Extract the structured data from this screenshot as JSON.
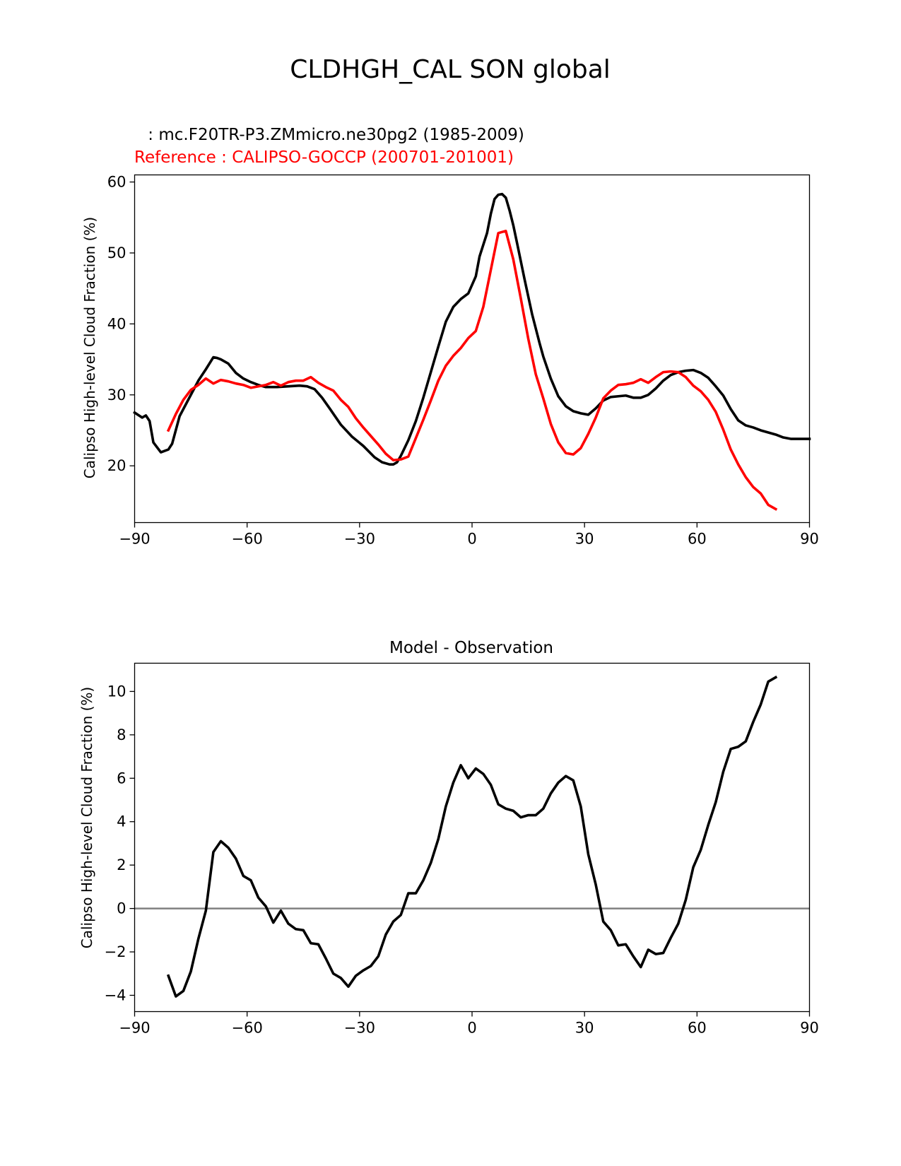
{
  "figure": {
    "suptitle": "CLDHGH_CAL SON global"
  },
  "chart_data": [
    {
      "type": "line",
      "test_label": " : mc.F20TR-P3.ZMmicro.ne30pg2 (1985-2009)",
      "ref_label": "Reference : CALIPSO-GOCCP (200701-201001)",
      "title": "",
      "xlabel": "",
      "ylabel": "Calipso High-level Cloud Fraction (%)",
      "xlim": [
        -90,
        90
      ],
      "ylim": [
        12,
        61
      ],
      "xticks": [
        -90,
        -60,
        -30,
        0,
        30,
        60,
        90
      ],
      "xtick_labels": [
        "−90",
        "−60",
        "−30",
        "0",
        "30",
        "60",
        "90"
      ],
      "yticks": [
        20,
        30,
        40,
        50,
        60
      ],
      "ytick_labels": [
        "20",
        "30",
        "40",
        "50",
        "60"
      ],
      "colors": {
        "test": "#000000",
        "reference": "#ff0000"
      },
      "series": [
        {
          "name": "test",
          "x": [
            -90,
            -88,
            -87,
            -86,
            -85,
            -83,
            -81,
            -80,
            -78,
            -75,
            -73,
            -71,
            -69,
            -68,
            -67,
            -65,
            -63,
            -61,
            -59,
            -57,
            -55,
            -52,
            -49,
            -46,
            -44,
            -42,
            -40,
            -38,
            -35,
            -32,
            -29,
            -26,
            -24,
            -22,
            -21,
            -20,
            -19,
            -17,
            -15,
            -13,
            -11,
            -9,
            -7,
            -5,
            -3,
            -1,
            1,
            2,
            4,
            5,
            6,
            7,
            8,
            9,
            10,
            11,
            12,
            14,
            16,
            18,
            19,
            21,
            23,
            25,
            27,
            29,
            31,
            33,
            35,
            37,
            39,
            41,
            43,
            45,
            47,
            49,
            51,
            53,
            55,
            57,
            59,
            61,
            63,
            65,
            67,
            69,
            71,
            73,
            75,
            77,
            79,
            81,
            83,
            85,
            88,
            90
          ],
          "values": [
            27.5,
            26.8,
            27.1,
            26.3,
            23.3,
            21.9,
            22.3,
            23.1,
            27.0,
            30.0,
            32.0,
            33.6,
            35.3,
            35.2,
            35.0,
            34.4,
            33.1,
            32.3,
            31.8,
            31.4,
            31.1,
            31.1,
            31.2,
            31.3,
            31.2,
            30.8,
            29.6,
            28.1,
            25.8,
            24.1,
            22.8,
            21.2,
            20.5,
            20.2,
            20.2,
            20.5,
            21.4,
            23.6,
            26.3,
            29.6,
            33.2,
            36.8,
            40.3,
            42.4,
            43.5,
            44.3,
            46.7,
            49.5,
            52.8,
            55.5,
            57.6,
            58.2,
            58.3,
            57.8,
            56.0,
            53.9,
            51.4,
            46.3,
            41.4,
            37.3,
            35.4,
            32.3,
            29.8,
            28.4,
            27.7,
            27.4,
            27.2,
            28.1,
            29.2,
            29.7,
            29.8,
            29.9,
            29.6,
            29.6,
            30.0,
            30.9,
            32.0,
            32.8,
            33.2,
            33.4,
            33.5,
            33.1,
            32.4,
            31.2,
            29.9,
            28.0,
            26.4,
            25.7,
            25.4,
            25.0,
            24.7,
            24.4,
            24.0,
            23.8,
            23.8,
            23.8
          ]
        },
        {
          "name": "reference",
          "x": [
            -81,
            -79,
            -77,
            -75,
            -73,
            -71,
            -69,
            -67,
            -65,
            -63,
            -61,
            -59,
            -57,
            -55,
            -53,
            -51,
            -49,
            -47,
            -45,
            -43,
            -41,
            -39,
            -37,
            -35,
            -33,
            -31,
            -29,
            -27,
            -25,
            -23,
            -21,
            -19,
            -17,
            -15,
            -13,
            -11,
            -9,
            -7,
            -5,
            -3,
            -1,
            1,
            3,
            5,
            7,
            9,
            11,
            13,
            15,
            17,
            19,
            21,
            23,
            25,
            27,
            29,
            31,
            33,
            35,
            37,
            39,
            41,
            43,
            45,
            47,
            49,
            51,
            53,
            55,
            57,
            59,
            61,
            63,
            65,
            67,
            69,
            71,
            73,
            75,
            77,
            79,
            81
          ],
          "values": [
            25.0,
            27.3,
            29.3,
            30.7,
            31.4,
            32.3,
            31.6,
            32.1,
            31.9,
            31.6,
            31.4,
            31.0,
            31.2,
            31.4,
            31.8,
            31.3,
            31.8,
            32.0,
            32.0,
            32.5,
            31.7,
            31.1,
            30.6,
            29.3,
            28.3,
            26.7,
            25.4,
            24.2,
            23.0,
            21.7,
            20.8,
            20.9,
            21.3,
            23.9,
            26.5,
            29.2,
            32.0,
            34.1,
            35.5,
            36.6,
            38.0,
            39.0,
            42.4,
            47.6,
            52.8,
            53.1,
            49.1,
            43.6,
            37.9,
            32.9,
            29.5,
            25.9,
            23.3,
            21.8,
            21.6,
            22.5,
            24.5,
            26.8,
            29.5,
            30.6,
            31.4,
            31.5,
            31.7,
            32.2,
            31.7,
            32.5,
            33.2,
            33.3,
            33.2,
            32.5,
            31.3,
            30.5,
            29.3,
            27.6,
            25.1,
            22.3,
            20.2,
            18.4,
            17.0,
            16.1,
            14.5,
            13.9
          ]
        }
      ]
    },
    {
      "type": "line",
      "title": "Model - Observation",
      "xlabel": "",
      "ylabel": "Calipso High-level Cloud Fraction (%)",
      "xlim": [
        -90,
        90
      ],
      "ylim": [
        -4.75,
        11.3
      ],
      "xticks": [
        -90,
        -60,
        -30,
        0,
        30,
        60,
        90
      ],
      "xtick_labels": [
        "−90",
        "−60",
        "−30",
        "0",
        "30",
        "60",
        "90"
      ],
      "yticks": [
        -4,
        -2,
        0,
        2,
        4,
        6,
        8,
        10
      ],
      "ytick_labels": [
        "−4",
        "−2",
        "0",
        "2",
        "4",
        "6",
        "8",
        "10"
      ],
      "zero_line_color": "#808080",
      "series": [
        {
          "name": "difference",
          "x": [
            -81,
            -79,
            -77,
            -75,
            -73,
            -71,
            -69,
            -67,
            -65,
            -63,
            -61,
            -59,
            -57,
            -55,
            -53,
            -51,
            -49,
            -47,
            -45,
            -43,
            -41,
            -39,
            -37,
            -35,
            -33,
            -31,
            -29,
            -27,
            -25,
            -23,
            -21,
            -19,
            -17,
            -15,
            -13,
            -11,
            -9,
            -7,
            -5,
            -3,
            -1,
            1,
            3,
            5,
            7,
            9,
            11,
            13,
            15,
            17,
            19,
            21,
            23,
            25,
            27,
            29,
            31,
            33,
            35,
            37,
            39,
            41,
            43,
            45,
            47,
            49,
            51,
            53,
            55,
            57,
            59,
            61,
            63,
            65,
            67,
            69,
            71,
            73,
            75,
            77,
            79,
            81
          ],
          "values": [
            -3.1,
            -4.05,
            -3.8,
            -2.9,
            -1.4,
            -0.1,
            2.6,
            3.1,
            2.8,
            2.3,
            1.5,
            1.3,
            0.5,
            0.1,
            -0.65,
            -0.1,
            -0.7,
            -0.95,
            -1.0,
            -1.6,
            -1.65,
            -2.3,
            -3.0,
            -3.2,
            -3.6,
            -3.1,
            -2.85,
            -2.65,
            -2.2,
            -1.2,
            -0.6,
            -0.3,
            0.7,
            0.7,
            1.3,
            2.1,
            3.2,
            4.7,
            5.8,
            6.6,
            6.0,
            6.45,
            6.2,
            5.7,
            4.8,
            4.6,
            4.5,
            4.2,
            4.3,
            4.3,
            4.6,
            5.3,
            5.8,
            6.1,
            5.9,
            4.7,
            2.5,
            1.1,
            -0.6,
            -1.0,
            -1.7,
            -1.65,
            -2.2,
            -2.7,
            -1.9,
            -2.1,
            -2.05,
            -1.35,
            -0.7,
            0.4,
            1.9,
            2.7,
            3.85,
            4.9,
            6.3,
            7.35,
            7.45,
            7.7,
            8.6,
            9.4,
            10.45,
            10.65
          ]
        }
      ]
    }
  ]
}
